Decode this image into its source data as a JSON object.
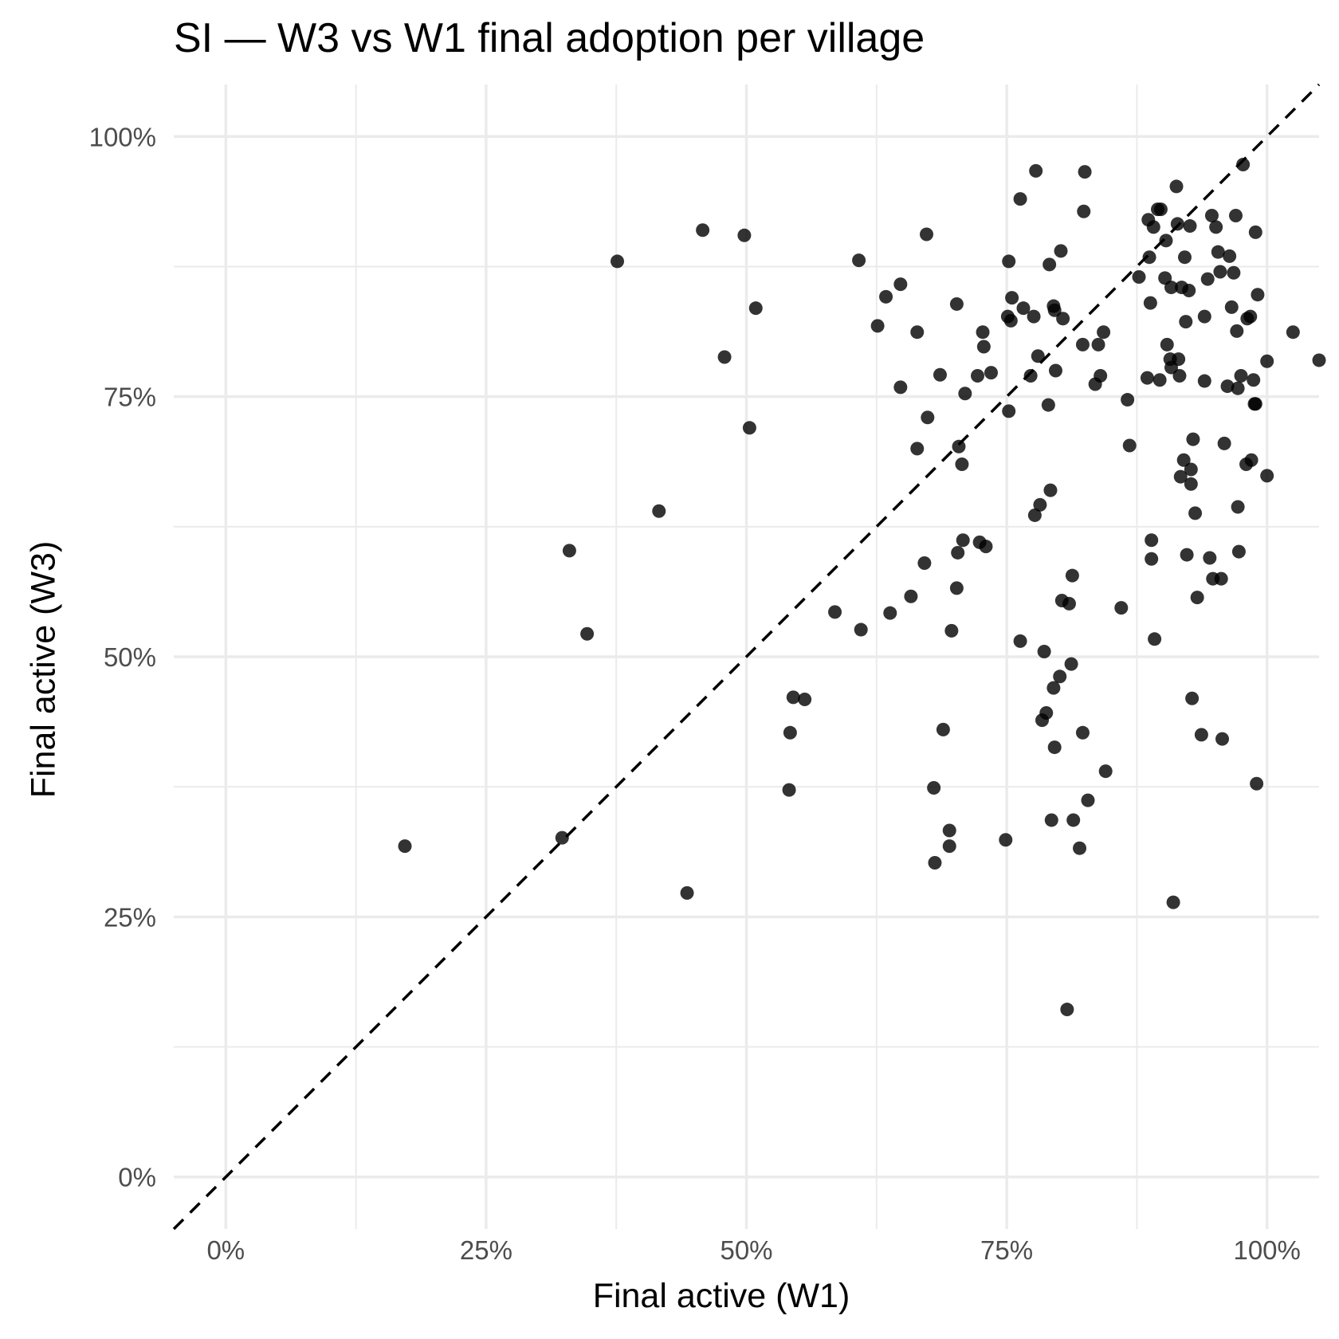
{
  "chart_data": {
    "type": "scatter",
    "title": "SI — W3 vs W1 final adoption per village",
    "xlabel": "Final active (W1)",
    "ylabel": "Final active (W3)",
    "xlim": [
      -0.05,
      1.05
    ],
    "ylim": [
      -0.05,
      1.05
    ],
    "x_ticks": [
      0,
      0.25,
      0.5,
      0.75,
      1.0
    ],
    "x_tick_labels": [
      "0%",
      "25%",
      "50%",
      "75%",
      "100%"
    ],
    "y_ticks": [
      0,
      0.25,
      0.5,
      0.75,
      1.0
    ],
    "y_tick_labels": [
      "0%",
      "25%",
      "50%",
      "75%",
      "100%"
    ],
    "grid": true,
    "reference_line": {
      "type": "identity",
      "style": "dashed",
      "color": "#000000"
    },
    "point_color": "#000000",
    "point_opacity": 0.8,
    "points": [
      [
        0.172,
        0.318
      ],
      [
        0.323,
        0.326
      ],
      [
        0.33,
        0.602
      ],
      [
        0.347,
        0.522
      ],
      [
        0.376,
        0.88
      ],
      [
        0.416,
        0.64
      ],
      [
        0.443,
        0.273
      ],
      [
        0.458,
        0.91
      ],
      [
        0.479,
        0.788
      ],
      [
        0.498,
        0.905
      ],
      [
        0.503,
        0.72
      ],
      [
        0.509,
        0.835
      ],
      [
        0.541,
        0.372
      ],
      [
        0.542,
        0.427
      ],
      [
        0.545,
        0.461
      ],
      [
        0.556,
        0.459
      ],
      [
        0.585,
        0.543
      ],
      [
        0.608,
        0.881
      ],
      [
        0.61,
        0.526
      ],
      [
        0.626,
        0.818
      ],
      [
        0.634,
        0.846
      ],
      [
        0.638,
        0.542
      ],
      [
        0.648,
        0.858
      ],
      [
        0.648,
        0.759
      ],
      [
        0.658,
        0.558
      ],
      [
        0.664,
        0.812
      ],
      [
        0.664,
        0.7
      ],
      [
        0.671,
        0.59
      ],
      [
        0.673,
        0.906
      ],
      [
        0.674,
        0.73
      ],
      [
        0.68,
        0.374
      ],
      [
        0.681,
        0.302
      ],
      [
        0.686,
        0.771
      ],
      [
        0.689,
        0.43
      ],
      [
        0.695,
        0.333
      ],
      [
        0.695,
        0.318
      ],
      [
        0.697,
        0.525
      ],
      [
        0.702,
        0.839
      ],
      [
        0.702,
        0.566
      ],
      [
        0.703,
        0.6
      ],
      [
        0.704,
        0.702
      ],
      [
        0.707,
        0.685
      ],
      [
        0.708,
        0.612
      ],
      [
        0.71,
        0.753
      ],
      [
        0.722,
        0.77
      ],
      [
        0.724,
        0.61
      ],
      [
        0.727,
        0.812
      ],
      [
        0.728,
        0.798
      ],
      [
        0.73,
        0.606
      ],
      [
        0.735,
        0.773
      ],
      [
        0.749,
        0.324
      ],
      [
        0.751,
        0.827
      ],
      [
        0.752,
        0.88
      ],
      [
        0.752,
        0.736
      ],
      [
        0.754,
        0.823
      ],
      [
        0.755,
        0.845
      ],
      [
        0.763,
        0.94
      ],
      [
        0.763,
        0.515
      ],
      [
        0.766,
        0.835
      ],
      [
        0.773,
        0.77
      ],
      [
        0.776,
        0.827
      ],
      [
        0.777,
        0.636
      ],
      [
        0.778,
        0.967
      ],
      [
        0.78,
        0.789
      ],
      [
        0.782,
        0.646
      ],
      [
        0.784,
        0.439
      ],
      [
        0.786,
        0.505
      ],
      [
        0.788,
        0.446
      ],
      [
        0.79,
        0.742
      ],
      [
        0.791,
        0.877
      ],
      [
        0.792,
        0.66
      ],
      [
        0.793,
        0.343
      ],
      [
        0.795,
        0.837
      ],
      [
        0.795,
        0.47
      ],
      [
        0.796,
        0.833
      ],
      [
        0.796,
        0.413
      ],
      [
        0.797,
        0.775
      ],
      [
        0.801,
        0.481
      ],
      [
        0.802,
        0.89
      ],
      [
        0.803,
        0.554
      ],
      [
        0.804,
        0.825
      ],
      [
        0.808,
        0.161
      ],
      [
        0.81,
        0.551
      ],
      [
        0.812,
        0.493
      ],
      [
        0.813,
        0.578
      ],
      [
        0.814,
        0.343
      ],
      [
        0.82,
        0.316
      ],
      [
        0.823,
        0.8
      ],
      [
        0.823,
        0.427
      ],
      [
        0.824,
        0.928
      ],
      [
        0.825,
        0.966
      ],
      [
        0.828,
        0.362
      ],
      [
        0.835,
        0.762
      ],
      [
        0.838,
        0.8
      ],
      [
        0.84,
        0.77
      ],
      [
        0.843,
        0.812
      ],
      [
        0.845,
        0.39
      ],
      [
        0.86,
        0.547
      ],
      [
        0.866,
        0.747
      ],
      [
        0.868,
        0.703
      ],
      [
        0.877,
        0.865
      ],
      [
        0.885,
        0.768
      ],
      [
        0.886,
        0.92
      ],
      [
        0.887,
        0.884
      ],
      [
        0.888,
        0.84
      ],
      [
        0.889,
        0.612
      ],
      [
        0.889,
        0.594
      ],
      [
        0.891,
        0.913
      ],
      [
        0.892,
        0.517
      ],
      [
        0.895,
        0.93
      ],
      [
        0.897,
        0.766
      ],
      [
        0.898,
        0.93
      ],
      [
        0.902,
        0.864
      ],
      [
        0.903,
        0.9
      ],
      [
        0.904,
        0.8
      ],
      [
        0.907,
        0.786
      ],
      [
        0.908,
        0.855
      ],
      [
        0.908,
        0.778
      ],
      [
        0.91,
        0.264
      ],
      [
        0.913,
        0.952
      ],
      [
        0.914,
        0.916
      ],
      [
        0.915,
        0.786
      ],
      [
        0.916,
        0.77
      ],
      [
        0.917,
        0.673
      ],
      [
        0.918,
        0.855
      ],
      [
        0.92,
        0.689
      ],
      [
        0.921,
        0.884
      ],
      [
        0.922,
        0.822
      ],
      [
        0.923,
        0.598
      ],
      [
        0.925,
        0.852
      ],
      [
        0.926,
        0.914
      ],
      [
        0.927,
        0.68
      ],
      [
        0.927,
        0.666
      ],
      [
        0.928,
        0.46
      ],
      [
        0.929,
        0.709
      ],
      [
        0.931,
        0.638
      ],
      [
        0.933,
        0.557
      ],
      [
        0.937,
        0.425
      ],
      [
        0.94,
        0.765
      ],
      [
        0.94,
        0.827
      ],
      [
        0.943,
        0.863
      ],
      [
        0.945,
        0.595
      ],
      [
        0.947,
        0.924
      ],
      [
        0.948,
        0.575
      ],
      [
        0.951,
        0.913
      ],
      [
        0.953,
        0.889
      ],
      [
        0.955,
        0.87
      ],
      [
        0.956,
        0.575
      ],
      [
        0.957,
        0.421
      ],
      [
        0.959,
        0.705
      ],
      [
        0.962,
        0.76
      ],
      [
        0.964,
        0.885
      ],
      [
        0.966,
        0.836
      ],
      [
        0.968,
        0.869
      ],
      [
        0.97,
        0.924
      ],
      [
        0.971,
        0.813
      ],
      [
        0.972,
        0.758
      ],
      [
        0.973,
        0.601
      ],
      [
        0.972,
        0.644
      ],
      [
        0.975,
        0.77
      ],
      [
        0.977,
        0.973
      ],
      [
        0.98,
        0.685
      ],
      [
        0.981,
        0.825
      ],
      [
        0.984,
        0.827
      ],
      [
        0.985,
        0.689
      ],
      [
        0.987,
        0.766
      ],
      [
        0.988,
        0.743
      ],
      [
        0.989,
        0.743
      ],
      [
        0.989,
        0.908
      ],
      [
        0.99,
        0.378
      ],
      [
        0.991,
        0.848
      ],
      [
        1.0,
        0.784
      ],
      [
        1.0,
        0.674
      ],
      [
        1.025,
        0.812
      ],
      [
        1.05,
        0.785
      ]
    ]
  }
}
